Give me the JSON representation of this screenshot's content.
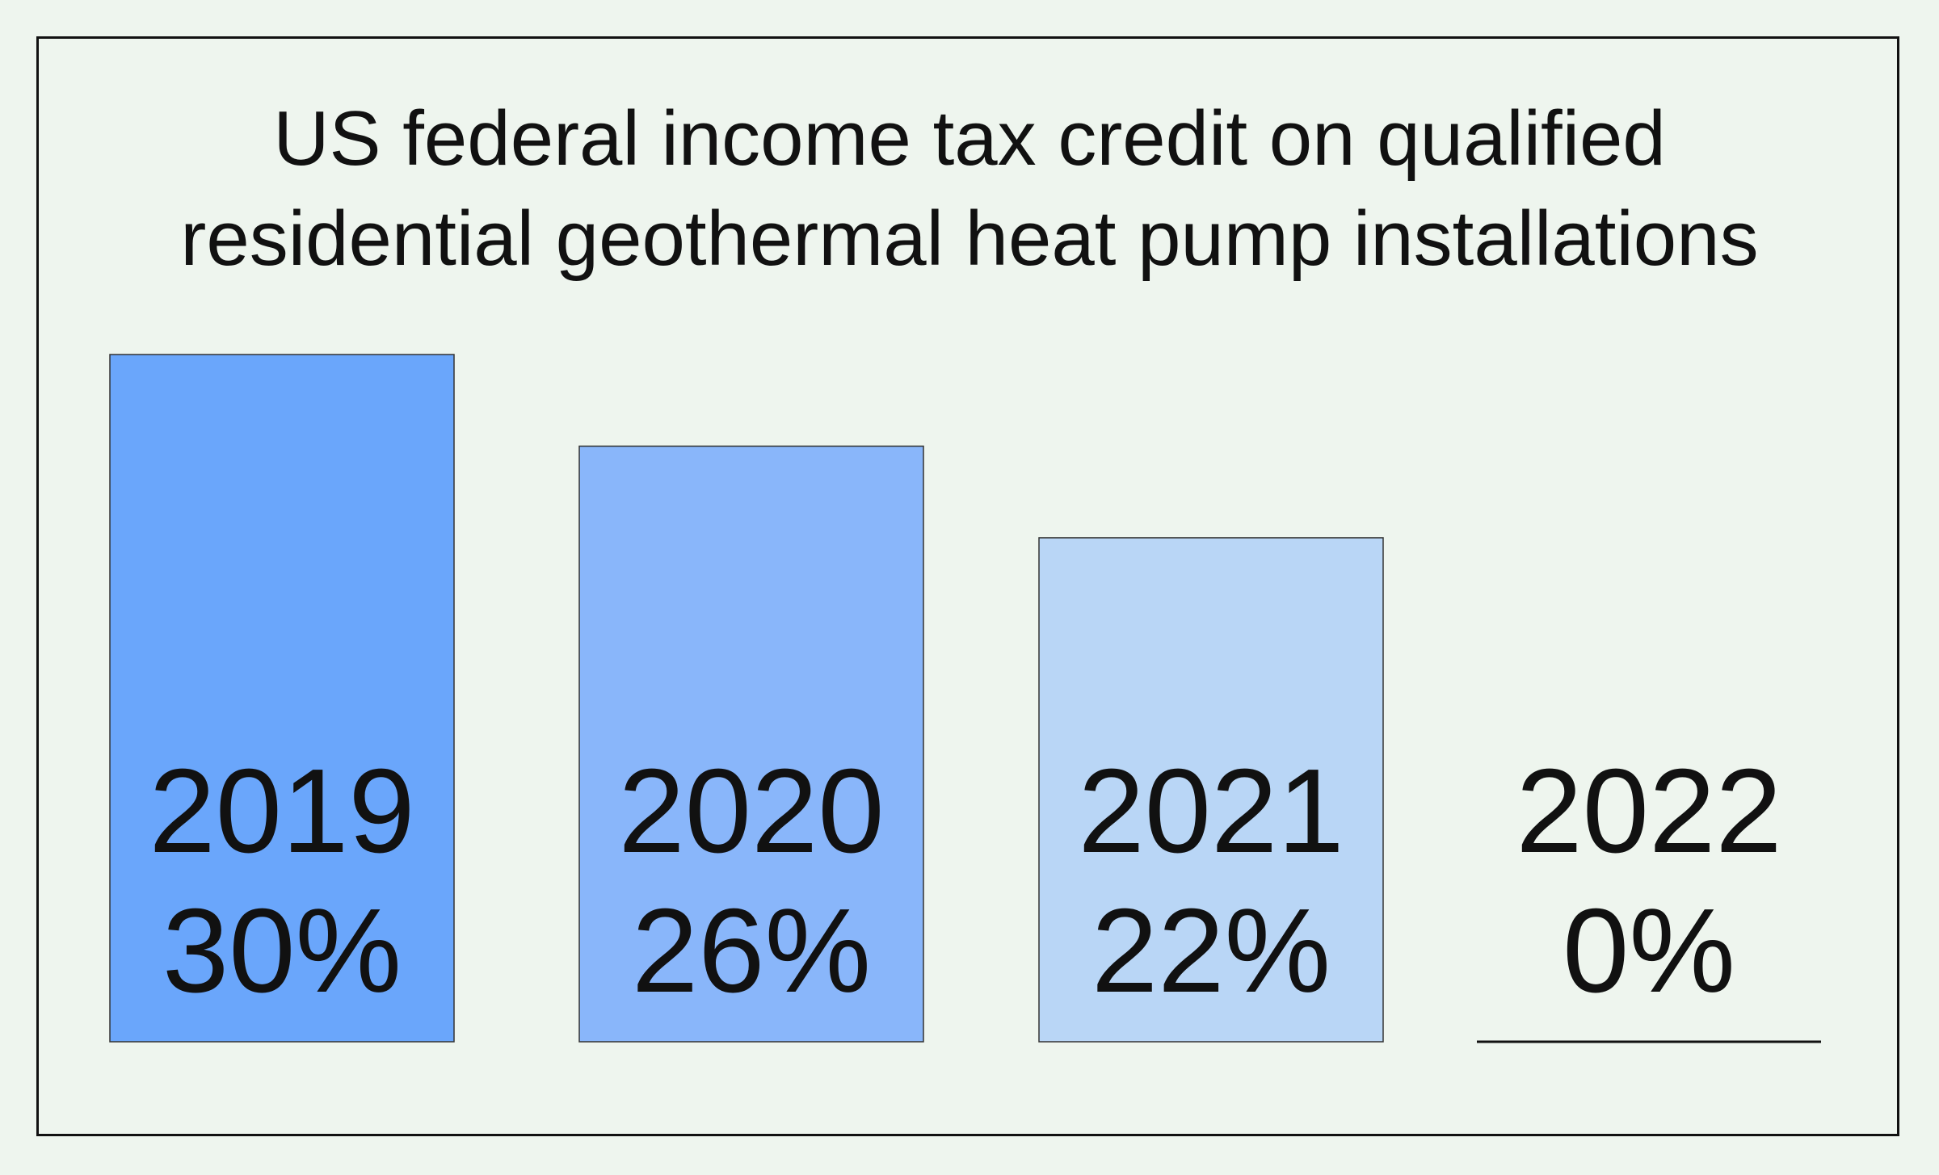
{
  "chart_data": {
    "type": "bar",
    "title_lines": [
      "US federal income tax credit on qualified",
      "residential geothermal heat pump installations"
    ],
    "categories": [
      "2019",
      "2020",
      "2021",
      "2022"
    ],
    "values": [
      30,
      26,
      22,
      0
    ],
    "value_labels": [
      "30%",
      "26%",
      "22%",
      "0%"
    ],
    "unit": "%",
    "ylim": [
      0,
      30
    ],
    "colors": [
      "#6aa6fb",
      "#89b6fa",
      "#b9d6f6",
      "#eef5ee"
    ],
    "grid": false,
    "legend": "none"
  }
}
